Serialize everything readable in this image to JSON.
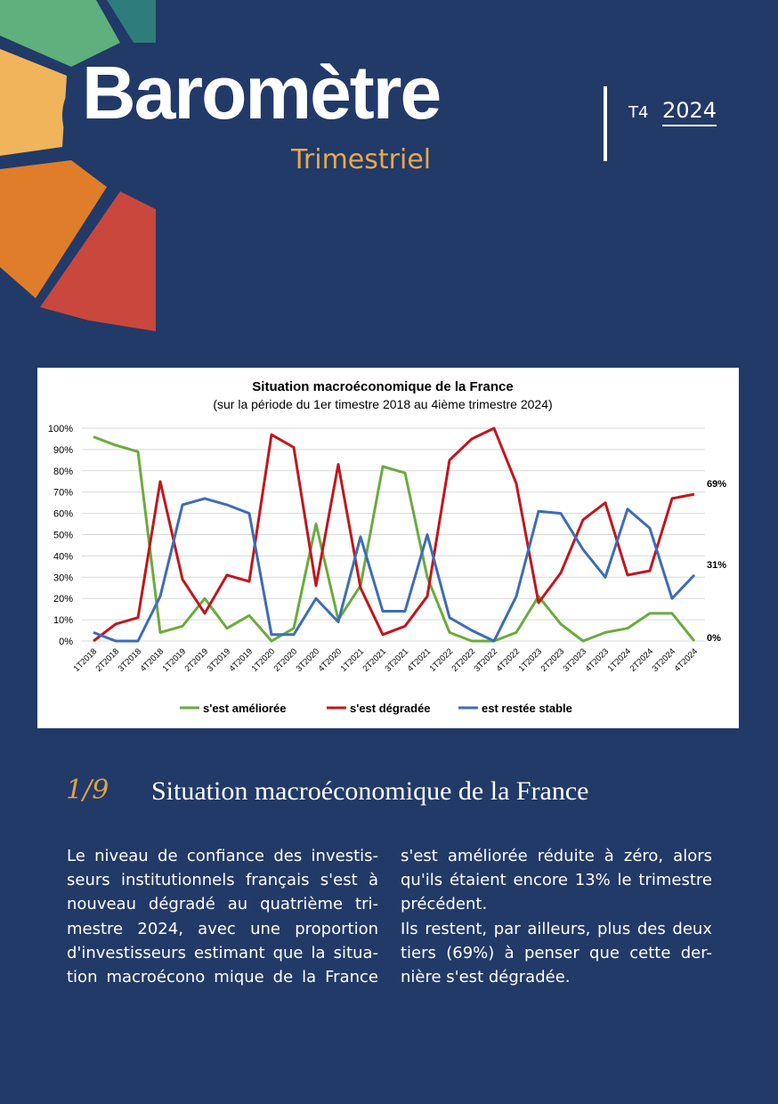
{
  "header": {
    "title": "Baromètre",
    "subtitle": "Trimestriel",
    "quarter": "T4",
    "year": "2024"
  },
  "chart_data": {
    "type": "line",
    "title": "Situation macroéconomique de la France",
    "subtitle": "(sur la période du 1er timestre 2018 au 4ième trimestre 2024)",
    "categories": [
      "1T2018",
      "2T2018",
      "3T2018",
      "4T2018",
      "1T2019",
      "2T2019",
      "3T2019",
      "4T2019",
      "1T2020",
      "2T2020",
      "3T2020",
      "4T2020",
      "1T2021",
      "2T2021",
      "3T2021",
      "4T2021",
      "1T2022",
      "2T2022",
      "3T2022",
      "4T2022",
      "1T2023",
      "2T2023",
      "3T2023",
      "4T2023",
      "1T2024",
      "2T2024",
      "3T2024",
      "4T2024"
    ],
    "series": [
      {
        "name": "s'est améliorée",
        "color": "#6aab3e",
        "values": [
          96,
          92,
          89,
          4,
          7,
          20,
          6,
          12,
          0,
          6,
          55,
          10,
          26,
          82,
          79,
          30,
          4,
          0,
          0,
          4,
          21,
          8,
          0,
          4,
          6,
          13,
          13,
          0
        ],
        "value_labels": [
          null,
          null,
          null,
          null,
          null,
          null,
          null,
          null,
          null,
          null,
          null,
          null,
          null,
          null,
          null,
          null,
          null,
          null,
          null,
          null,
          null,
          null,
          null,
          null,
          null,
          null,
          null,
          "0%"
        ]
      },
      {
        "name": "s'est dégradée",
        "color": "#c0171d",
        "values": [
          0,
          8,
          11,
          75,
          29,
          13,
          31,
          28,
          97,
          91,
          26,
          83,
          25,
          3,
          7,
          21,
          85,
          95,
          100,
          74,
          18,
          32,
          57,
          65,
          31,
          33,
          67,
          69
        ],
        "value_labels": [
          null,
          null,
          null,
          null,
          null,
          null,
          null,
          null,
          null,
          null,
          null,
          null,
          null,
          null,
          null,
          null,
          null,
          null,
          null,
          null,
          null,
          null,
          null,
          null,
          null,
          null,
          null,
          "69%"
        ]
      },
      {
        "name": "est restée stable",
        "color": "#3d6db5",
        "values": [
          4,
          0,
          0,
          21,
          64,
          67,
          64,
          60,
          3,
          3,
          20,
          9,
          49,
          14,
          14,
          50,
          11,
          5,
          0,
          21,
          61,
          60,
          43,
          30,
          62,
          53,
          20,
          31
        ],
        "value_labels": [
          null,
          null,
          null,
          null,
          null,
          null,
          null,
          null,
          null,
          null,
          null,
          null,
          null,
          null,
          null,
          null,
          null,
          null,
          null,
          null,
          null,
          null,
          null,
          null,
          null,
          null,
          null,
          "31%"
        ]
      }
    ],
    "ylim": [
      0,
      100
    ],
    "yticks": [
      {
        "value": 0,
        "label": "0%"
      },
      {
        "value": 10,
        "label": "10%"
      },
      {
        "value": 20,
        "label": "20%"
      },
      {
        "value": 30,
        "label": "30%"
      },
      {
        "value": 40,
        "label": "40%"
      },
      {
        "value": 50,
        "label": "50%"
      },
      {
        "value": 60,
        "label": "60%"
      },
      {
        "value": 70,
        "label": "70%"
      },
      {
        "value": 80,
        "label": "80%"
      },
      {
        "value": 90,
        "label": "90%"
      },
      {
        "value": 100,
        "label": "100%"
      }
    ],
    "grid": true,
    "legend": "bottom"
  },
  "section": {
    "number": "1/9",
    "title": "Situation macroéconomique de la France",
    "columns": [
      [
        [
          "Le niveau de confiance des investis-",
          "seurs institutionnels français s'est à",
          "nouveau dégradé au quatrième tri-",
          "mestre 2024, avec une proportion",
          "d'investisseurs estimant que la situa-",
          "tion macroécono mique de la France"
        ]
      ],
      [
        [
          "s'est améliorée réduite à zéro, alors",
          "qu'ils étaient encore 13% le trimestre",
          "précédent."
        ],
        [
          "Ils restent, par ailleurs, plus des deux",
          "tiers (69%) à penser que cette der-",
          "nière s'est dégradée."
        ]
      ]
    ]
  }
}
